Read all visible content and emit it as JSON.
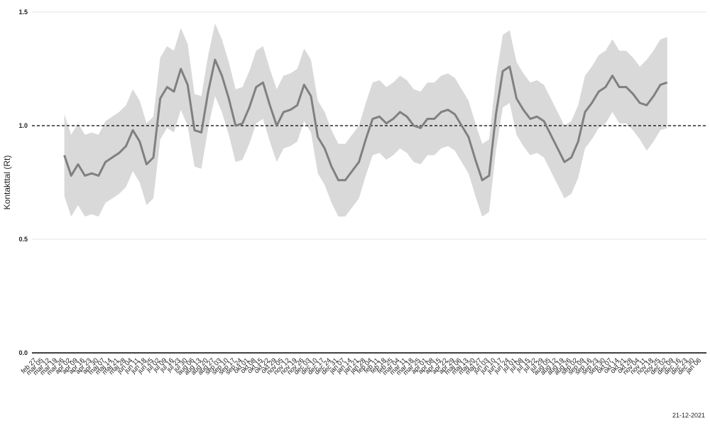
{
  "chart_data": {
    "type": "line",
    "y_label": "Kontakttal (Rt)",
    "note": "21-12-2021",
    "categories": [
      "feb 27",
      "mar 05",
      "mar 12",
      "mar 19",
      "mar 26",
      "apr 02",
      "apr 09",
      "apr 16",
      "apr 23",
      "apr 30",
      "maj 07",
      "maj 14",
      "maj 21",
      "maj 28",
      "jun 04",
      "jun 11",
      "jun 18",
      "jun 25",
      "jul 02",
      "jul 09",
      "jul 16",
      "jul 23",
      "jul 30",
      "aug 06",
      "aug 13",
      "aug 20",
      "aug 27",
      "sep 03",
      "sep 10",
      "sep 17",
      "sep 24",
      "okt 01",
      "okt 08",
      "okt 15",
      "okt 22",
      "okt 29",
      "nov 05",
      "nov 12",
      "nov 19",
      "nov 26",
      "dec 03",
      "dec 10",
      "dec 17",
      "dec 24",
      "dec 31",
      "jan 07",
      "jan 14",
      "jan 21",
      "jan 28",
      "feb 04",
      "feb 11",
      "feb 18",
      "feb 25",
      "mar 04",
      "mar 11",
      "mar 18",
      "mar 25",
      "apr 01",
      "apr 08",
      "apr 15",
      "apr 22",
      "apr 29",
      "maj 06",
      "maj 13",
      "maj 20",
      "maj 27",
      "jun 03",
      "jun 10",
      "jun 17",
      "jun 24",
      "jul 01",
      "jul 08",
      "jul 15",
      "jul 22",
      "jul 29",
      "aug 05",
      "aug 12",
      "aug 19",
      "aug 26",
      "sep 02",
      "sep 09",
      "sep 16",
      "sep 23",
      "sep 30",
      "okt 07",
      "okt 14",
      "okt 21",
      "okt 28",
      "nov 04",
      "nov 11",
      "nov 18",
      "nov 25",
      "dec 02",
      "dec 09",
      "dec 16",
      "dec 23",
      "dec 30",
      "jan 06"
    ],
    "values": [
      null,
      null,
      null,
      null,
      0.87,
      0.78,
      0.83,
      0.78,
      0.79,
      0.78,
      0.84,
      0.86,
      0.88,
      0.91,
      0.98,
      0.93,
      0.83,
      0.86,
      1.12,
      1.17,
      1.15,
      1.25,
      1.18,
      0.98,
      0.97,
      1.15,
      1.29,
      1.22,
      1.12,
      1.0,
      1.01,
      1.08,
      1.17,
      1.19,
      1.09,
      1.0,
      1.06,
      1.07,
      1.09,
      1.18,
      1.13,
      0.95,
      0.9,
      0.82,
      0.76,
      0.76,
      0.8,
      0.84,
      0.94,
      1.03,
      1.04,
      1.01,
      1.03,
      1.06,
      1.04,
      1.0,
      0.99,
      1.03,
      1.03,
      1.06,
      1.07,
      1.05,
      1.0,
      0.95,
      0.85,
      0.76,
      0.78,
      1.05,
      1.24,
      1.26,
      1.12,
      1.07,
      1.03,
      1.04,
      1.02,
      0.96,
      0.9,
      0.84,
      0.86,
      0.93,
      1.06,
      1.1,
      1.15,
      1.17,
      1.22,
      1.17,
      1.17,
      1.14,
      1.1,
      1.09,
      1.13,
      1.18,
      1.19,
      null,
      null,
      null,
      null,
      null
    ],
    "ci_upper": [
      null,
      null,
      null,
      null,
      1.05,
      0.96,
      1.01,
      0.96,
      0.97,
      0.96,
      1.02,
      1.04,
      1.06,
      1.09,
      1.16,
      1.11,
      1.01,
      1.04,
      1.3,
      1.35,
      1.33,
      1.43,
      1.36,
      1.14,
      1.13,
      1.31,
      1.45,
      1.38,
      1.28,
      1.16,
      1.17,
      1.24,
      1.33,
      1.35,
      1.25,
      1.16,
      1.22,
      1.23,
      1.25,
      1.34,
      1.29,
      1.11,
      1.06,
      0.98,
      0.92,
      0.92,
      0.96,
      1.0,
      1.1,
      1.19,
      1.2,
      1.17,
      1.19,
      1.22,
      1.2,
      1.16,
      1.15,
      1.19,
      1.19,
      1.22,
      1.23,
      1.21,
      1.16,
      1.11,
      1.01,
      0.92,
      0.94,
      1.21,
      1.4,
      1.42,
      1.28,
      1.23,
      1.19,
      1.2,
      1.18,
      1.12,
      1.06,
      1.0,
      1.02,
      1.09,
      1.22,
      1.26,
      1.31,
      1.33,
      1.38,
      1.33,
      1.33,
      1.3,
      1.26,
      1.29,
      1.33,
      1.38,
      1.39,
      null,
      null,
      null,
      null,
      null
    ],
    "ci_lower": [
      null,
      null,
      null,
      null,
      0.69,
      0.6,
      0.65,
      0.6,
      0.61,
      0.6,
      0.66,
      0.68,
      0.7,
      0.73,
      0.8,
      0.75,
      0.65,
      0.68,
      0.94,
      0.99,
      0.97,
      1.07,
      1.0,
      0.82,
      0.81,
      0.99,
      1.13,
      1.06,
      0.96,
      0.84,
      0.85,
      0.92,
      1.01,
      1.03,
      0.93,
      0.84,
      0.9,
      0.91,
      0.93,
      1.02,
      0.97,
      0.79,
      0.74,
      0.66,
      0.6,
      0.6,
      0.64,
      0.68,
      0.78,
      0.87,
      0.88,
      0.85,
      0.87,
      0.9,
      0.88,
      0.84,
      0.83,
      0.87,
      0.87,
      0.9,
      0.91,
      0.89,
      0.84,
      0.79,
      0.69,
      0.6,
      0.62,
      0.89,
      1.08,
      1.1,
      0.96,
      0.91,
      0.87,
      0.88,
      0.86,
      0.8,
      0.74,
      0.68,
      0.7,
      0.77,
      0.9,
      0.94,
      0.99,
      1.01,
      1.06,
      1.01,
      1.01,
      0.98,
      0.94,
      0.89,
      0.93,
      0.98,
      0.99,
      null,
      null,
      null,
      null,
      null
    ],
    "color": "#808080",
    "band_color": "#d9d9d9",
    "reference_line": 1,
    "ylim": [
      0,
      1.5
    ],
    "yticks": [
      {
        "value": 0,
        "label": "0.0"
      },
      0.5,
      {
        "value": 1,
        "label": "1.0"
      },
      1.5
    ],
    "grid": true
  }
}
